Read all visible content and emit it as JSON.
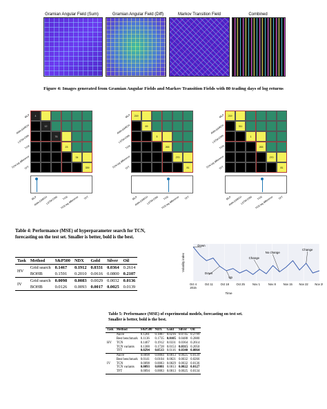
{
  "fig4": {
    "panel_titles": [
      "Gramian Angular Field (Sum)",
      "Gramian Angular Field (Diff)",
      "Markov Transition Field",
      "Combined"
    ],
    "caption": "Figure 4: Images generated from Gramian Angular Fields and Markov Transition Fields with 80 trading days of log returns"
  },
  "matrix_labels": [
    "MLP",
    "ANN-GARCH",
    "LSTM-CNN",
    "TCN",
    "TCN log difference",
    "TFT"
  ],
  "matrices": [
    {
      "values": [
        "4",
        "12",
        "76",
        "23",
        "34",
        "339"
      ]
    },
    {
      "values": [
        "219",
        "69",
        "5",
        "265",
        "270",
        "81"
      ]
    },
    {
      "values": [
        "219",
        "311",
        "1",
        "265",
        "270",
        "81"
      ]
    }
  ],
  "table4": {
    "caption": "Table 4: Performance (MSE) of hyperparameter search for TCN, forecasting on the test set. Smaller is better, bold is the best.",
    "headers": [
      "Task",
      "Method",
      "S&P500",
      "NDX",
      "Gold",
      "Silver",
      "Oil"
    ],
    "rows": [
      {
        "task": "HV",
        "method": "Grid search",
        "v": [
          "0.1467",
          "0.1912",
          "0.0331",
          "0.0364",
          "0.2614"
        ]
      },
      {
        "task": "",
        "method": "BOHB",
        "v": [
          "0.1591",
          "0.2010",
          "0.0616",
          "0.0800",
          "0.2107"
        ]
      },
      {
        "task": "IV",
        "method": "Grid search",
        "v": [
          "0.0098",
          "0.0083",
          "0.0029",
          "0.0032",
          "0.0136"
        ]
      },
      {
        "task": "",
        "method": "BOHB",
        "v": [
          "0.0126",
          "0.0093",
          "0.0017",
          "0.0025",
          "0.0139"
        ]
      }
    ]
  },
  "chart_data": {
    "type": "line",
    "title": "",
    "xlabel": "Time",
    "ylabel": "Volatility index",
    "x_ticks": [
      "Oct 4\n2015",
      "Oct 11",
      "Oct 18",
      "Oct 25",
      "Nov 1",
      "Nov 8",
      "Nov 15",
      "Nov 22",
      "Nov 29"
    ],
    "x": [
      "2015-10-04",
      "2015-10-07",
      "2015-10-10",
      "2015-10-13",
      "2015-10-16",
      "2015-10-19",
      "2015-10-22",
      "2015-10-25",
      "2015-10-28",
      "2015-10-31",
      "2015-11-03",
      "2015-11-06",
      "2015-11-09",
      "2015-11-12",
      "2015-11-15",
      "2015-11-18",
      "2015-11-21",
      "2015-11-24",
      "2015-11-27",
      "2015-11-30"
    ],
    "values": [
      0.92,
      0.7,
      0.55,
      0.62,
      0.4,
      0.28,
      0.34,
      0.22,
      0.3,
      0.18,
      0.32,
      0.2,
      0.42,
      0.25,
      0.38,
      0.55,
      0.3,
      0.48,
      0.22,
      0.28
    ],
    "annotations": [
      "Down",
      "Down",
      "Up",
      "Change",
      "No change",
      "Change"
    ],
    "grid": true
  },
  "table5": {
    "caption": "Table 5: Performance (MSE) of experimental models, forecasting on test set. Smaller is better, bold is the best.",
    "headers": [
      "Task",
      "Method",
      "S&P500",
      "NDX",
      "Gold",
      "Silver",
      "Oil"
    ],
    "rows": [
      {
        "task": "",
        "method": "Naïve",
        "v": [
          "0.1281",
          "0.1887",
          "0.0216",
          "0.0745",
          "0.2799"
        ]
      },
      {
        "task": "",
        "method": "Best benchmark",
        "v": [
          "0.1136",
          "0.1735",
          "0.0105",
          "0.0488",
          "0.2880"
        ]
      },
      {
        "task": "HV",
        "method": "TCN",
        "v": [
          "0.1467",
          "0.1912",
          "0.0331",
          "0.0364",
          "0.2614"
        ]
      },
      {
        "task": "",
        "method": "TCN variants",
        "v": [
          "0.1300",
          "0.1728",
          "0.0153",
          "0.0315",
          "0.2050"
        ]
      },
      {
        "task": "",
        "method": "TFT",
        "v": [
          "0.0294",
          "0.0513",
          "0.0116",
          "0.0340",
          "0.0864"
        ]
      },
      {
        "task": "",
        "method": "Naïve",
        "v": [
          "0.0098",
          "0.0084",
          "0.0013",
          "0.0025",
          "0.0139"
        ]
      },
      {
        "task": "",
        "method": "Best benchmark",
        "v": [
          "0.0141",
          "0.0104",
          "0.0021",
          "0.0032",
          "0.0266"
        ]
      },
      {
        "task": "IV",
        "method": "TCN",
        "v": [
          "0.0098",
          "0.0083",
          "0.0029",
          "0.0032",
          "0.0136"
        ]
      },
      {
        "task": "",
        "method": "TCN variants",
        "v": [
          "0.0093",
          "0.0081",
          "0.0013",
          "0.0022",
          "0.0127"
        ]
      },
      {
        "task": "",
        "method": "TFT",
        "v": [
          "0.0094",
          "0.0083",
          "0.0013",
          "0.0025",
          "0.0134"
        ]
      }
    ]
  }
}
